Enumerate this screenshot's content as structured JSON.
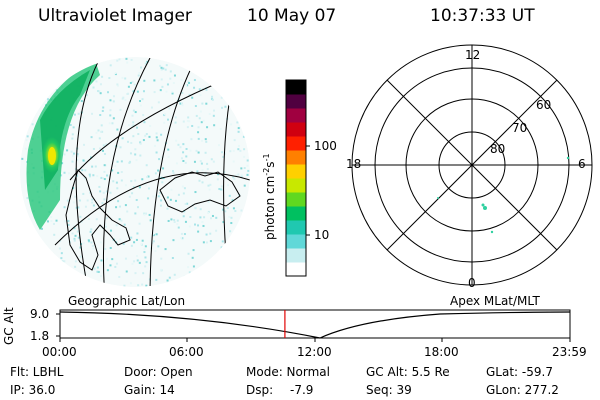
{
  "header": {
    "title": "Ultraviolet Imager",
    "date": "10 May 07",
    "time": "10:37:33 UT"
  },
  "colorbar": {
    "ticks": [
      "100",
      "10"
    ],
    "unit_label": "photon cm",
    "unit_exp1": "-2",
    "unit_s": "s",
    "unit_exp2": "-1"
  },
  "polar_plot": {
    "mlt_labels": [
      "12",
      "6",
      "0",
      "18"
    ],
    "lat_labels": [
      "60",
      "70",
      "80"
    ]
  },
  "map_label": "Geographic Lat/Lon",
  "polar_label": "Apex MLat/MLT",
  "altitude_plot": {
    "ylabel": "GC Alt",
    "y_ticks": [
      "9.0",
      "1.8"
    ],
    "x_ticks": [
      "00:00",
      "06:00",
      "12:00",
      "18:00",
      "23:59"
    ],
    "marker_time_fraction": 0.441
  },
  "info": {
    "row1": {
      "flt": "Flt: LBHL",
      "door": "Door: Open",
      "mode": "Mode: Normal",
      "gcalt": "GC Alt: 5.5 Re",
      "glat": "GLat: -59.7"
    },
    "row2": {
      "ip": "IP: 36.0",
      "gain": "Gain: 14",
      "dsp_label": "Dsp:",
      "dsp_val": "-7.9",
      "seq": "Seq: 39",
      "glon": "GLon: 277.2"
    }
  },
  "colors": {
    "colorbar": [
      "#ffffff",
      "#c8eef0",
      "#60d8d8",
      "#20c8b0",
      "#00c060",
      "#60d820",
      "#c8e800",
      "#ffd000",
      "#ff8000",
      "#ff2000",
      "#d00010",
      "#a00040",
      "#500040",
      "#000000"
    ],
    "marker": "#e00000"
  }
}
